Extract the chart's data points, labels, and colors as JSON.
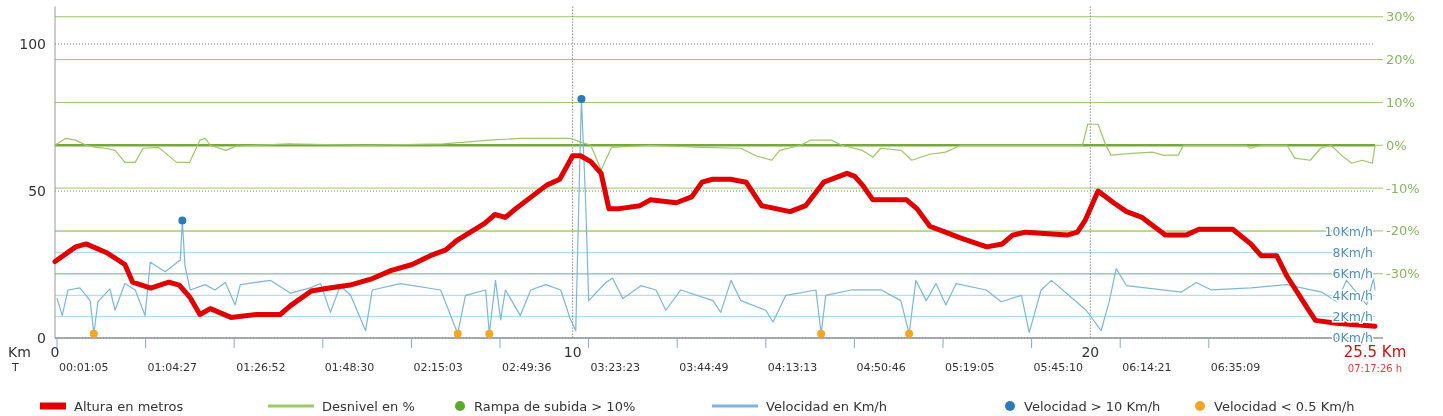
{
  "chart_data": {
    "type": "line",
    "xlabel": "Km",
    "xlim": [
      0,
      25.5
    ],
    "xticks": [
      0,
      10,
      20,
      {
        "value": 25.5,
        "label": "25.5 Km"
      }
    ],
    "annotations": [
      "T",
      "00:01:05",
      "01:04:27",
      "01:26:52",
      "01:48:30",
      "02:15:03",
      "02:49:36",
      "03:23:23",
      "03:44:49",
      "04:13:13",
      "04:50:46",
      "05:19:05",
      "05:45:10",
      "06:14:21",
      "06:35:09",
      "07:17:26 h"
    ],
    "ylim": [
      0,
      110
    ],
    "yticks": [
      0,
      50,
      100
    ],
    "y2lim": [
      -45,
      30.5
    ],
    "y2ticks": [
      {
        "value": 30,
        "label": "30%"
      },
      {
        "value": 20,
        "label": "20%"
      },
      {
        "value": 10,
        "label": "10%"
      },
      {
        "value": 0,
        "label": "0%"
      },
      {
        "value": -10,
        "label": "-10%"
      },
      {
        "value": -20,
        "label": "-20%"
      },
      {
        "value": -30,
        "label": "-30%"
      }
    ],
    "y3lim": [
      0,
      30.3
    ],
    "y3ticks": [
      {
        "value": 0,
        "label": "0Km/h"
      },
      {
        "value": 2,
        "label": "2Km/h"
      },
      {
        "value": 4,
        "label": "4Km/h"
      },
      {
        "value": 6,
        "label": "6Km/h"
      },
      {
        "value": 8,
        "label": "8Km/h"
      },
      {
        "value": 10,
        "label": "10Km/h"
      }
    ],
    "grid": true,
    "legend": "bottom",
    "line_style": "solid",
    "ref_lines": [
      {
        "axis": "y2",
        "value": 0,
        "color": "#78a83a"
      }
    ],
    "series": [
      {
        "name": "Altura en metros",
        "axis": "y",
        "color": "#e00000",
        "marker": "none",
        "x": [
          0,
          0.4,
          0.6,
          1.0,
          1.35,
          1.5,
          1.85,
          2.2,
          2.4,
          2.6,
          2.8,
          3.0,
          3.4,
          3.9,
          4.35,
          4.55,
          4.95,
          5.3,
          5.7,
          6.1,
          6.5,
          6.9,
          7.25,
          7.55,
          7.75,
          8.3,
          8.5,
          8.7,
          8.9,
          9.2,
          9.5,
          9.75,
          10.0,
          10.15,
          10.35,
          10.55,
          10.7,
          10.9,
          11.3,
          11.5,
          12.0,
          12.3,
          12.5,
          12.7,
          13.05,
          13.35,
          13.65,
          14.2,
          14.5,
          14.85,
          15.3,
          15.45,
          15.6,
          15.8,
          16.45,
          16.65,
          16.9,
          17.2,
          17.5,
          18.0,
          18.3,
          18.5,
          18.75,
          19.55,
          19.75,
          19.9,
          20.15,
          20.45,
          20.7,
          21.0,
          21.45,
          21.85,
          22.1,
          22.75,
          23.1,
          23.3,
          23.6,
          23.8,
          24.2,
          24.35,
          24.75,
          25.5
        ],
        "values": [
          26,
          31,
          32,
          29,
          25,
          19,
          17,
          19,
          18,
          14,
          8,
          10,
          7,
          8,
          8,
          11,
          16,
          17,
          18,
          20,
          23,
          25,
          28,
          30,
          33,
          39,
          42,
          41,
          44,
          48,
          52,
          54,
          62,
          62,
          60,
          56,
          44,
          44,
          45,
          47,
          46,
          48,
          53,
          54,
          54,
          53,
          45,
          43,
          45,
          53,
          56,
          55,
          52,
          47,
          47,
          44,
          38,
          36,
          34,
          31,
          32,
          35,
          36,
          35,
          36,
          40,
          50,
          46,
          43,
          41,
          35,
          35,
          37,
          37,
          32,
          28,
          28,
          21,
          10,
          6,
          5,
          4
        ]
      },
      {
        "name": "Desnivel en %",
        "axis": "y2",
        "color": "#9cc866",
        "marker": "none",
        "x": [
          0,
          0.2,
          0.4,
          0.6,
          0.8,
          0.97,
          1.16,
          1.35,
          1.55,
          1.7,
          2.0,
          2.35,
          2.6,
          2.8,
          2.9,
          3.0,
          3.3,
          3.5,
          4.5,
          6,
          7.5,
          8.4,
          9.0,
          9.95,
          10.35,
          10.55,
          10.75,
          11.5,
          12.5,
          13.25,
          13.55,
          13.85,
          14.0,
          14.4,
          14.6,
          15.0,
          15.2,
          15.6,
          15.8,
          15.95,
          16.35,
          16.55,
          16.9,
          17.2,
          17.5,
          19.85,
          19.95,
          20.15,
          20.3,
          20.4,
          20.8,
          21.2,
          21.4,
          21.7,
          21.8,
          23.0,
          23.1,
          23.3,
          23.8,
          23.95,
          24.25,
          24.45,
          24.65,
          24.85,
          25.05,
          25.25,
          25.45,
          25.5
        ],
        "values": [
          0,
          1.6,
          1.2,
          0,
          -0.5,
          -0.7,
          -1.2,
          -4,
          -4,
          -0.7,
          -0.5,
          -4,
          -4,
          1.2,
          1.6,
          0,
          -1.2,
          -0.2,
          0.3,
          0,
          0.3,
          1.2,
          1.6,
          1.6,
          0,
          -5.8,
          -0.5,
          0,
          -0.5,
          -0.7,
          -2.5,
          -3.5,
          -1.2,
          0,
          1.2,
          1.2,
          0,
          -1.2,
          -2.8,
          -0.7,
          -1.2,
          -3.5,
          -2.1,
          -1.6,
          0,
          0,
          4.9,
          4.9,
          0,
          -2.3,
          -1.9,
          -1.6,
          -2.3,
          -2.3,
          0,
          0,
          -0.7,
          0,
          0,
          -3,
          -3.5,
          -0.7,
          0,
          -2.3,
          -4.2,
          -3.5,
          -4.2,
          0
        ]
      },
      {
        "name": "Rampa de subida > 10%",
        "type": "scatter",
        "axis": "y2",
        "color": "#5aaa32",
        "marker": "circle"
      },
      {
        "name": "Velocidad en Km/h",
        "axis": "y3",
        "color": "#7db6da",
        "marker": "none",
        "x": [
          0.04,
          0.14,
          0.25,
          0.48,
          0.68,
          0.75,
          0.83,
          1.06,
          1.16,
          1.35,
          1.55,
          1.74,
          1.84,
          2.13,
          2.32,
          2.42,
          2.46,
          2.51,
          2.61,
          2.9,
          3.09,
          3.29,
          3.48,
          3.58,
          4.16,
          4.55,
          4.93,
          5.13,
          5.32,
          5.51,
          5.71,
          6.0,
          6.13,
          6.67,
          7.45,
          7.78,
          7.93,
          8.32,
          8.39,
          8.51,
          8.61,
          8.7,
          8.99,
          9.19,
          9.48,
          9.77,
          9.96,
          10.06,
          10.12,
          10.17,
          10.25,
          10.31,
          10.64,
          10.77,
          10.97,
          11.32,
          11.61,
          11.8,
          12.09,
          12.71,
          12.86,
          13.06,
          13.25,
          13.73,
          13.87,
          14.12,
          14.7,
          14.8,
          14.89,
          15.38,
          15.96,
          16.34,
          16.5,
          16.63,
          16.83,
          17.02,
          17.21,
          17.41,
          17.99,
          18.28,
          18.67,
          18.82,
          19.05,
          19.25,
          19.92,
          20.21,
          20.37,
          20.5,
          20.7,
          21.76,
          22.05,
          22.34,
          23.11,
          23.79,
          24.47,
          24.76,
          24.95,
          25.34,
          25.47,
          25.5
        ],
        "values": [
          3.7,
          2.1,
          4.5,
          4.7,
          3.5,
          0.4,
          3.4,
          4.6,
          2.6,
          5.1,
          4.5,
          2.1,
          7.1,
          6.2,
          null,
          7.3,
          11.0,
          6.8,
          4.5,
          5.0,
          4.5,
          5.2,
          3.1,
          5.0,
          5.4,
          4.2,
          4.7,
          5.1,
          2.4,
          4.9,
          4.0,
          0.7,
          4.5,
          5.1,
          4.5,
          0.4,
          4.0,
          4.5,
          0.4,
          5.4,
          1.7,
          4.5,
          2.1,
          4.5,
          5.0,
          4.5,
          1.7,
          0.7,
          12.9,
          22.4,
          12.9,
          3.5,
          5.2,
          5.6,
          3.7,
          4.9,
          4.5,
          2.6,
          4.5,
          3.5,
          2.4,
          5.4,
          3.5,
          2.6,
          1.5,
          4.0,
          4.5,
          0.4,
          4.0,
          4.5,
          4.5,
          3.5,
          0.4,
          5.4,
          3.5,
          5.1,
          3.1,
          5.1,
          4.5,
          3.4,
          4.0,
          0.5,
          4.5,
          5.4,
          2.6,
          0.7,
          3.5,
          6.5,
          4.9,
          4.3,
          5.2,
          4.5,
          4.7,
          5.0,
          4.3,
          3.4,
          5.4,
          3.1,
          5.6,
          4.5
        ]
      },
      {
        "name": "Velocidad > 10 Km/h",
        "type": "scatter",
        "axis": "y3",
        "color": "#2b7bb9",
        "marker": "circle",
        "x": [
          2.46,
          10.17
        ],
        "values": [
          11.0,
          22.4
        ]
      },
      {
        "name": "Velocidad < 0.5 Km/h",
        "type": "scatter",
        "axis": "y3",
        "color": "#f5a623",
        "marker": "circle",
        "x": [
          0.75,
          7.78,
          8.39,
          14.8,
          16.5
        ],
        "values": [
          0.4,
          0.4,
          0.4,
          0.4,
          0.4
        ]
      }
    ]
  }
}
